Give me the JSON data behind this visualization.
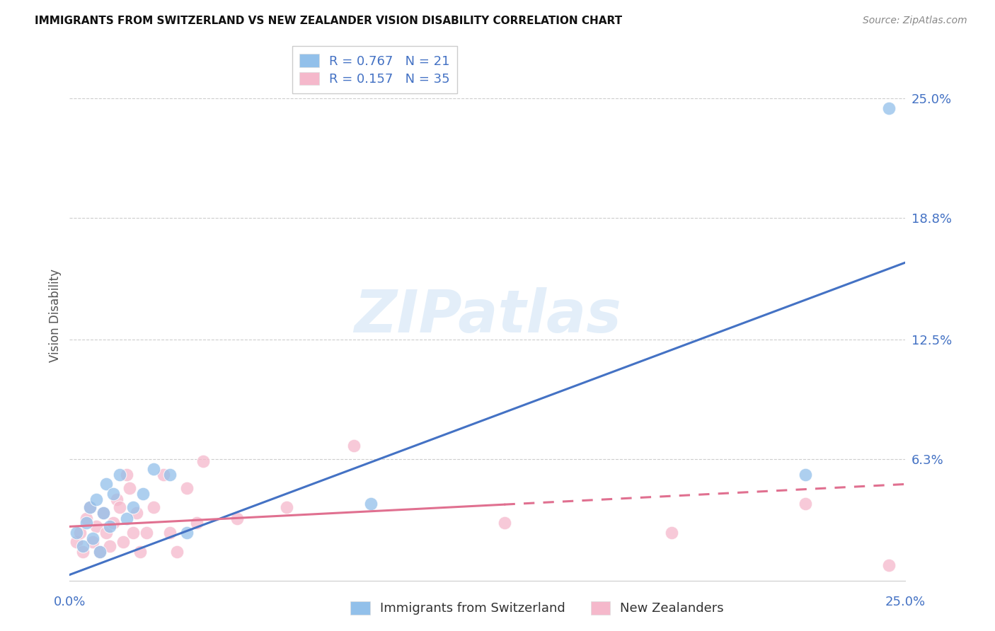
{
  "title": "IMMIGRANTS FROM SWITZERLAND VS NEW ZEALANDER VISION DISABILITY CORRELATION CHART",
  "source": "Source: ZipAtlas.com",
  "ylabel": "Vision Disability",
  "ytick_vals": [
    0.063,
    0.125,
    0.188,
    0.25
  ],
  "ytick_labels": [
    "6.3%",
    "12.5%",
    "18.8%",
    "25.0%"
  ],
  "xlim": [
    0.0,
    0.25
  ],
  "ylim": [
    0.0,
    0.275
  ],
  "legend1_r": "0.767",
  "legend1_n": "21",
  "legend2_r": "0.157",
  "legend2_n": "35",
  "blue_color": "#92c0ea",
  "pink_color": "#f5b8cb",
  "blue_line_color": "#4472c4",
  "pink_line_color": "#e07090",
  "blue_line_x0": 0.0,
  "blue_line_y0": 0.003,
  "blue_line_x1": 0.25,
  "blue_line_y1": 0.165,
  "pink_line_x0": 0.0,
  "pink_line_y0": 0.028,
  "pink_line_solid_x1": 0.13,
  "pink_line_dash_x1": 0.25,
  "pink_line_y1": 0.05,
  "blue_scatter_x": [
    0.002,
    0.004,
    0.005,
    0.006,
    0.007,
    0.008,
    0.009,
    0.01,
    0.011,
    0.012,
    0.013,
    0.015,
    0.017,
    0.019,
    0.022,
    0.025,
    0.03,
    0.035,
    0.09,
    0.22,
    0.245
  ],
  "blue_scatter_y": [
    0.025,
    0.018,
    0.03,
    0.038,
    0.022,
    0.042,
    0.015,
    0.035,
    0.05,
    0.028,
    0.045,
    0.055,
    0.032,
    0.038,
    0.045,
    0.058,
    0.055,
    0.025,
    0.04,
    0.055,
    0.245
  ],
  "pink_scatter_x": [
    0.002,
    0.003,
    0.004,
    0.005,
    0.006,
    0.007,
    0.008,
    0.009,
    0.01,
    0.011,
    0.012,
    0.013,
    0.014,
    0.015,
    0.016,
    0.017,
    0.018,
    0.019,
    0.02,
    0.021,
    0.023,
    0.025,
    0.028,
    0.03,
    0.032,
    0.035,
    0.038,
    0.04,
    0.05,
    0.065,
    0.085,
    0.13,
    0.18,
    0.22,
    0.245
  ],
  "pink_scatter_y": [
    0.02,
    0.025,
    0.015,
    0.032,
    0.038,
    0.02,
    0.028,
    0.015,
    0.035,
    0.025,
    0.018,
    0.03,
    0.042,
    0.038,
    0.02,
    0.055,
    0.048,
    0.025,
    0.035,
    0.015,
    0.025,
    0.038,
    0.055,
    0.025,
    0.015,
    0.048,
    0.03,
    0.062,
    0.032,
    0.038,
    0.07,
    0.03,
    0.025,
    0.04,
    0.008
  ],
  "watermark_text": "ZIPatlas",
  "background_color": "#ffffff",
  "grid_color": "#c8c8c8"
}
